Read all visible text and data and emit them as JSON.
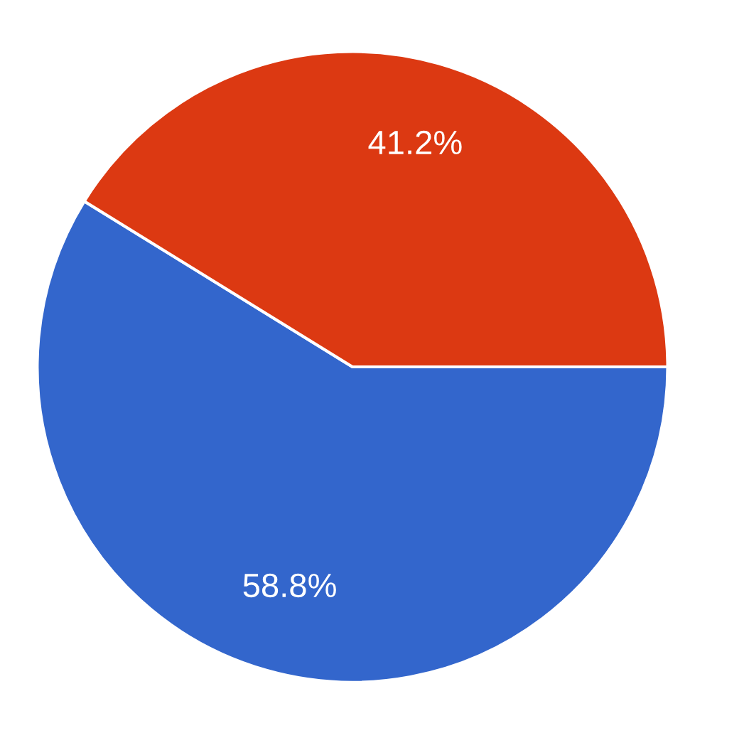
{
  "chart_data": {
    "type": "pie",
    "categories": [
      null,
      null
    ],
    "values": [
      58.8,
      41.2
    ],
    "colors": [
      "#3366cc",
      "#dc3912"
    ],
    "value_labels": [
      "58.8%",
      "41.2%"
    ],
    "legend": false
  }
}
